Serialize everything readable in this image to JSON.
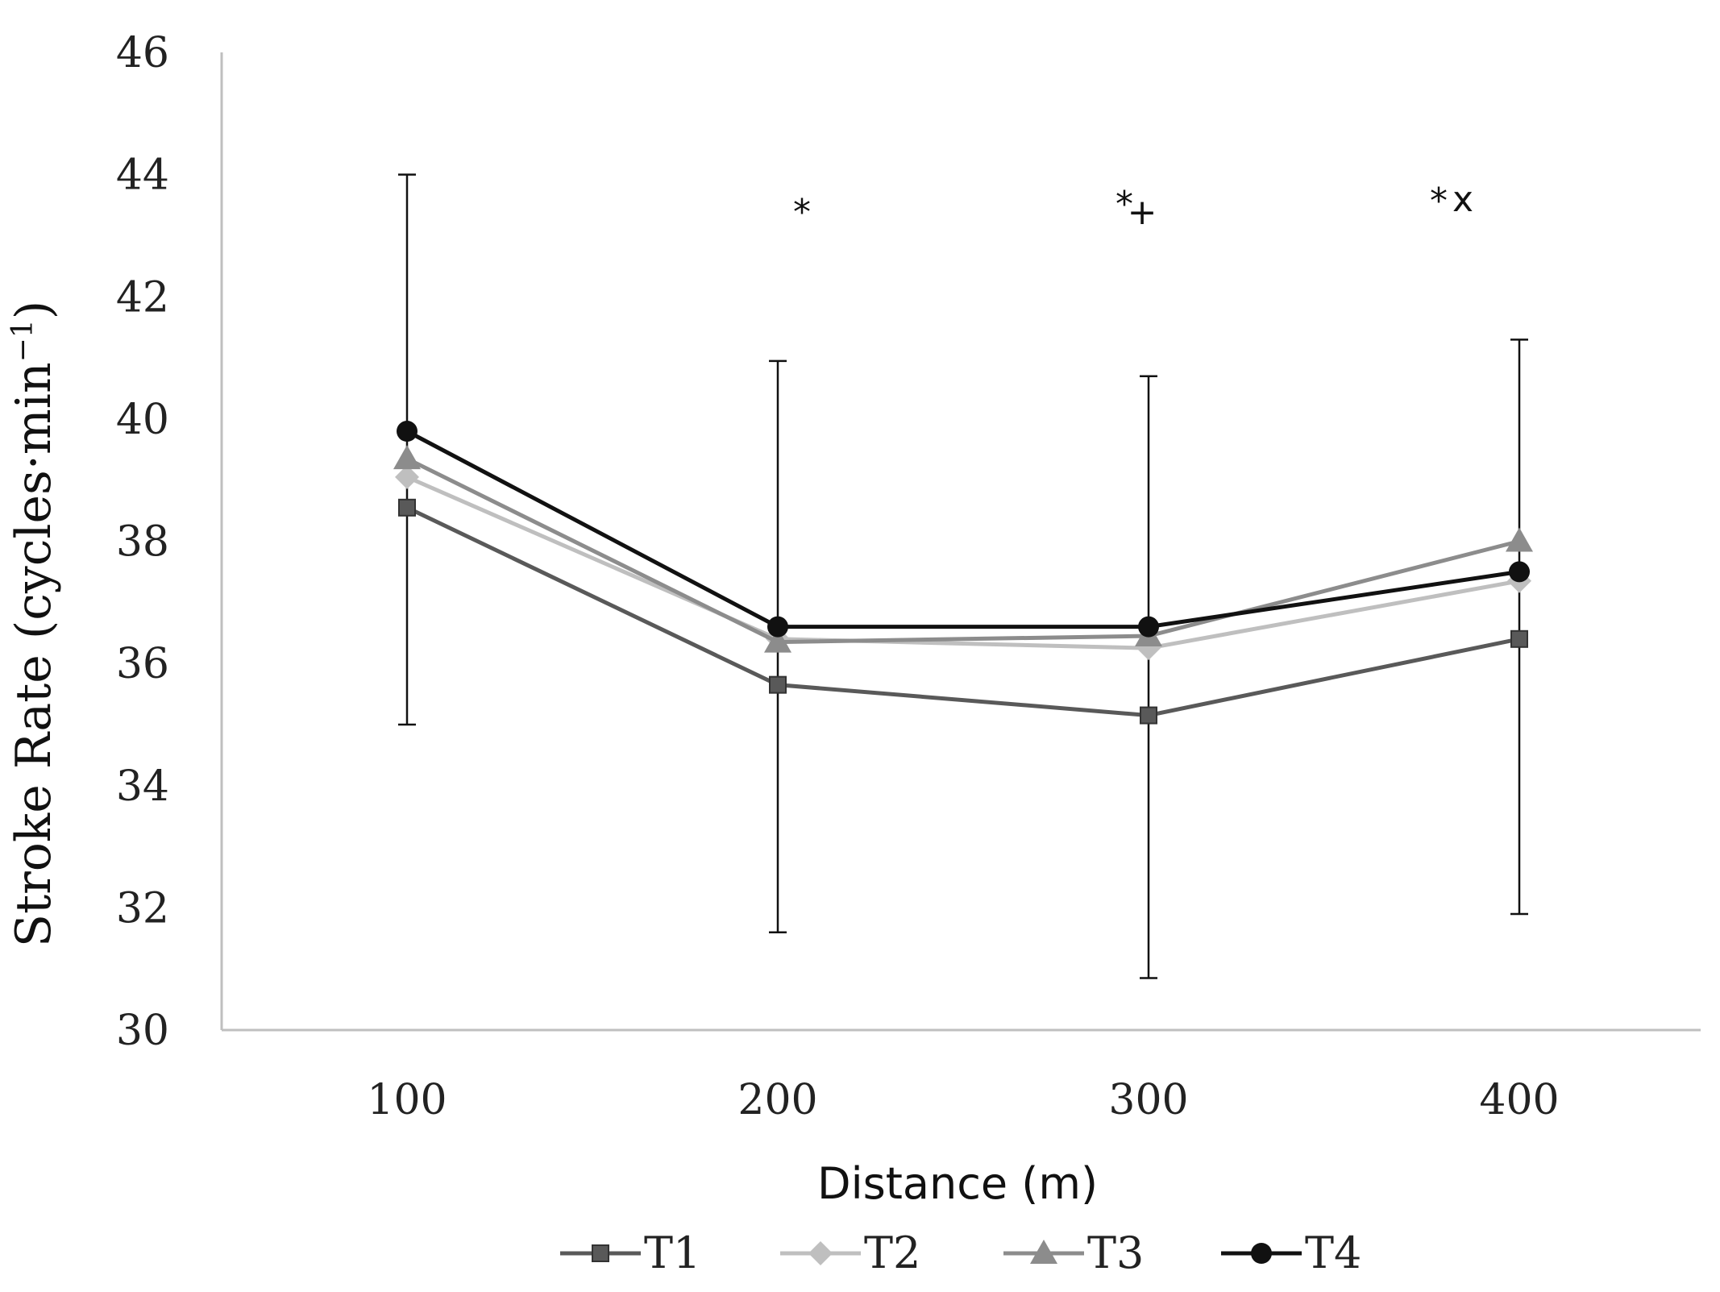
{
  "chart_data": {
    "type": "line",
    "title": "",
    "xlabel": "Distance (m)",
    "ylabel": "Stroke Rate (cycles·min",
    "ylabel_superscript": "−1",
    "ylabel_close": ")",
    "categories": [
      "100",
      "200",
      "300",
      "400"
    ],
    "ylim": [
      30,
      46
    ],
    "yticks": [
      "30",
      "32",
      "34",
      "36",
      "38",
      "40",
      "42",
      "44",
      "46"
    ],
    "grid": false,
    "legend": "bottom",
    "series": [
      {
        "name": "T1",
        "marker": "square",
        "color": "#595959",
        "values": [
          38.55,
          35.65,
          35.15,
          36.4
        ]
      },
      {
        "name": "T2",
        "marker": "diamond",
        "color": "#bfbfbf",
        "values": [
          39.05,
          36.4,
          36.25,
          37.35
        ]
      },
      {
        "name": "T3",
        "marker": "triangle",
        "color": "#8c8c8c",
        "values": [
          39.35,
          36.35,
          36.45,
          38.0
        ]
      },
      {
        "name": "T4",
        "marker": "circle",
        "color": "#111111",
        "values": [
          39.8,
          36.6,
          36.6,
          37.5
        ]
      }
    ],
    "error_bars": [
      {
        "x": "100",
        "low": 35.0,
        "high": 44.0
      },
      {
        "x": "200",
        "low": 31.6,
        "high": 40.95
      },
      {
        "x": "300",
        "low": 30.85,
        "high": 40.7
      },
      {
        "x": "400",
        "low": 31.9,
        "high": 41.3
      }
    ],
    "annotations": [
      {
        "x": "200",
        "marks": [
          "*"
        ]
      },
      {
        "x": "300",
        "marks": [
          "*",
          "+"
        ]
      },
      {
        "x": "400",
        "marks": [
          "*",
          "x"
        ]
      }
    ]
  }
}
